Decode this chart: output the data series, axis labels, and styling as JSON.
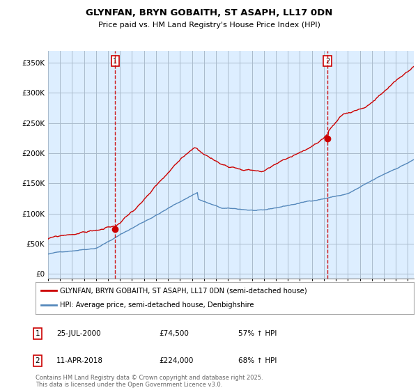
{
  "title": "GLYNFAN, BRYN GOBAITH, ST ASAPH, LL17 0DN",
  "subtitle": "Price paid vs. HM Land Registry's House Price Index (HPI)",
  "legend_line1": "GLYNFAN, BRYN GOBAITH, ST ASAPH, LL17 0DN (semi-detached house)",
  "legend_line2": "HPI: Average price, semi-detached house, Denbighshire",
  "annotation1_price": 74500,
  "annotation2_price": 224000,
  "price_color": "#cc0000",
  "hpi_color": "#5588bb",
  "vline_color": "#cc0000",
  "annotation_box_color": "#cc0000",
  "yticks": [
    0,
    50000,
    100000,
    150000,
    200000,
    250000,
    300000,
    350000
  ],
  "ylim": [
    -8000,
    370000
  ],
  "chart_bg_color": "#ddeeff",
  "copyright_text": "Contains HM Land Registry data © Crown copyright and database right 2025.\nThis data is licensed under the Open Government Licence v3.0.",
  "background_color": "#ffffff",
  "grid_color": "#aabbcc"
}
